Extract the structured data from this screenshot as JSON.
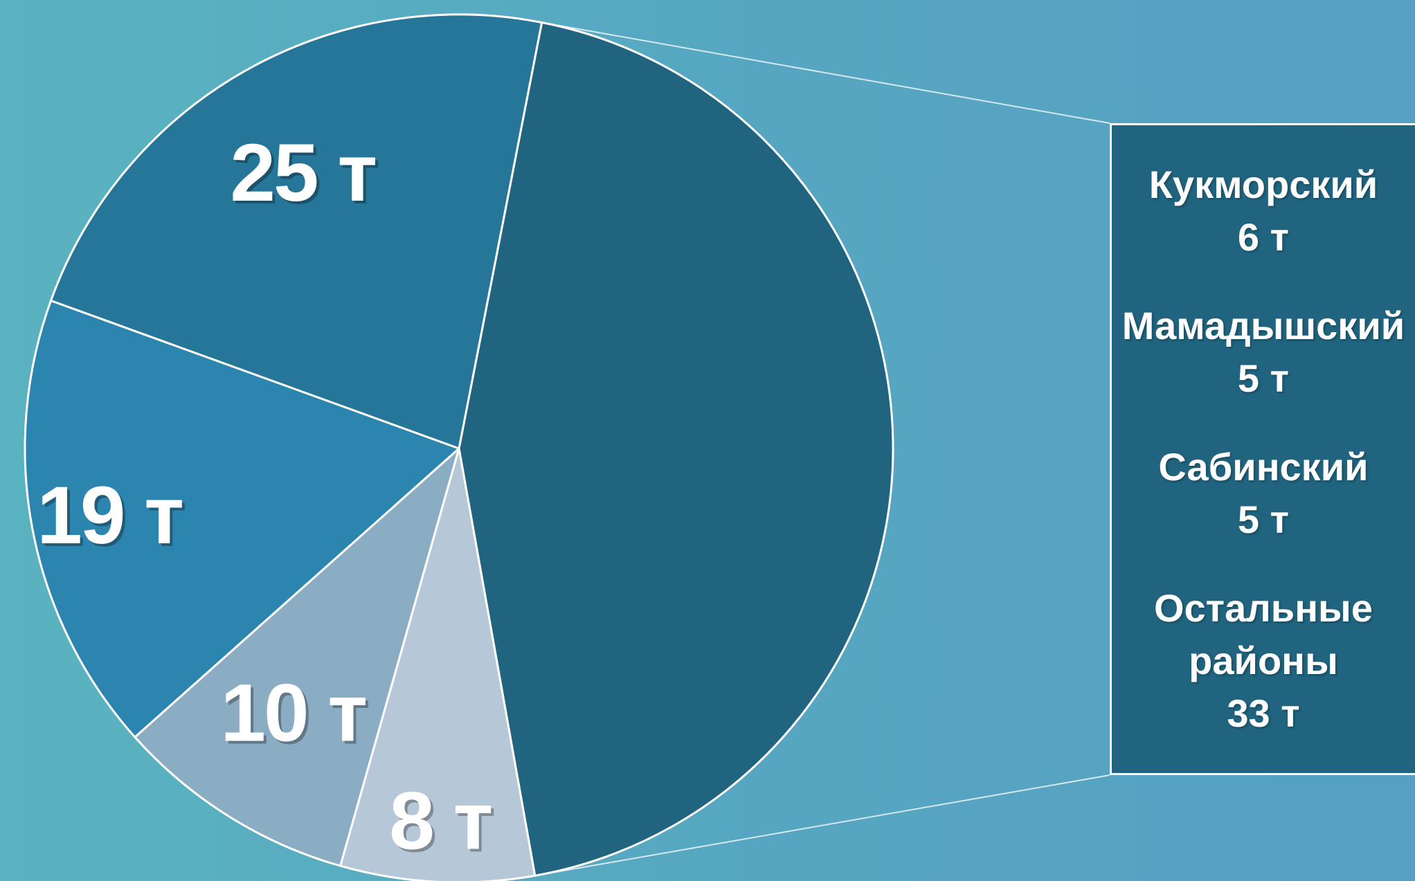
{
  "chart_data": {
    "type": "pie",
    "unit": "т",
    "slices": [
      {
        "value": 49,
        "label": "",
        "color": "#20647f"
      },
      {
        "value": 8,
        "label": "8 т",
        "color": "#b6c8d8"
      },
      {
        "value": 10,
        "label": "10 т",
        "color": "#8badc4"
      },
      {
        "value": 19,
        "label": "19 т",
        "color": "#2b85ae"
      },
      {
        "value": 25,
        "label": "25 т",
        "color": "#257699"
      }
    ],
    "breakdown": {
      "of_slice_color": "#20647f",
      "items": [
        {
          "name": "Кукморский",
          "value": "6 т"
        },
        {
          "name": "Мамадышский",
          "value": "5 т"
        },
        {
          "name": "Сабинский",
          "value": "5 т"
        },
        {
          "name_line1": "Остальные",
          "name_line2": "районы",
          "value": "33 т"
        }
      ]
    },
    "colors": {
      "background_left": "#5ab3c0",
      "background_right": "#55a0c3",
      "outline": "#ffffff"
    }
  }
}
